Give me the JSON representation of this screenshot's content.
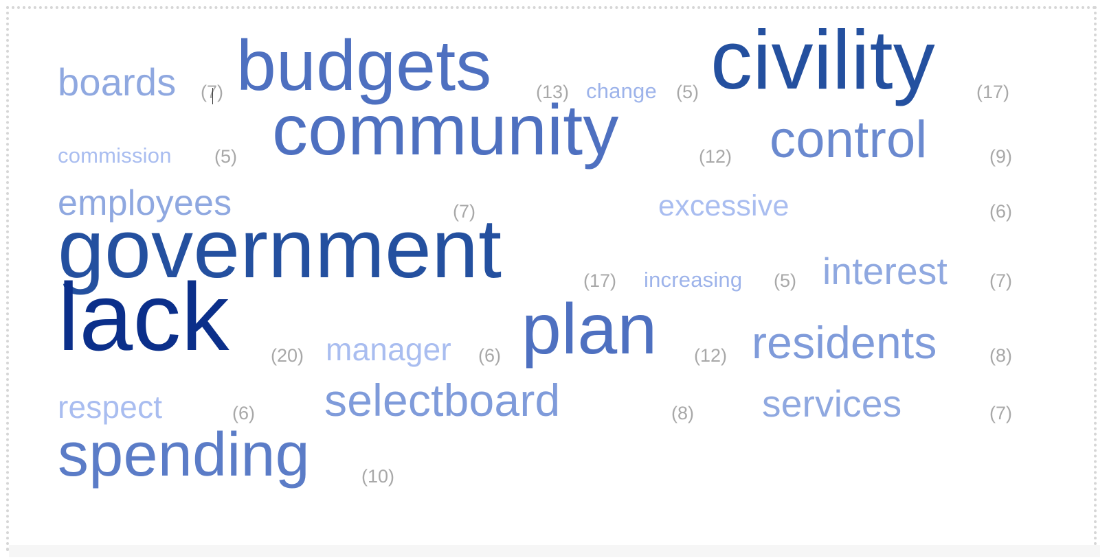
{
  "cloud": {
    "terms": [
      {
        "word": "boards",
        "count": "(7)"
      },
      {
        "word": "budgets",
        "count": "(13)"
      },
      {
        "word": "change",
        "count": "(5)"
      },
      {
        "word": "civility",
        "count": "(17)"
      },
      {
        "word": "commission",
        "count": "(5)"
      },
      {
        "word": "community",
        "count": "(12)"
      },
      {
        "word": "control",
        "count": "(9)"
      },
      {
        "word": "employees",
        "count": "(7)"
      },
      {
        "word": "excessive",
        "count": "(6)"
      },
      {
        "word": "government",
        "count": "(17)"
      },
      {
        "word": "increasing",
        "count": "(5)"
      },
      {
        "word": "interest",
        "count": "(7)"
      },
      {
        "word": "lack",
        "count": "(20)"
      },
      {
        "word": "manager",
        "count": "(6)"
      },
      {
        "word": "plan",
        "count": "(12)"
      },
      {
        "word": "residents",
        "count": "(8)"
      },
      {
        "word": "respect",
        "count": "(6)"
      },
      {
        "word": "selectboard",
        "count": "(8)"
      },
      {
        "word": "services",
        "count": "(7)"
      },
      {
        "word": "spending",
        "count": "(10)"
      }
    ]
  },
  "colors": {
    "count_gray": "#a8a8a8",
    "lightest_blue": "#a9bdf0",
    "light_blue": "#8fa8e0",
    "mid_blue": "#5b7cc7",
    "dark_blue": "#24509f",
    "darkest_blue": "#0b2f8a"
  }
}
